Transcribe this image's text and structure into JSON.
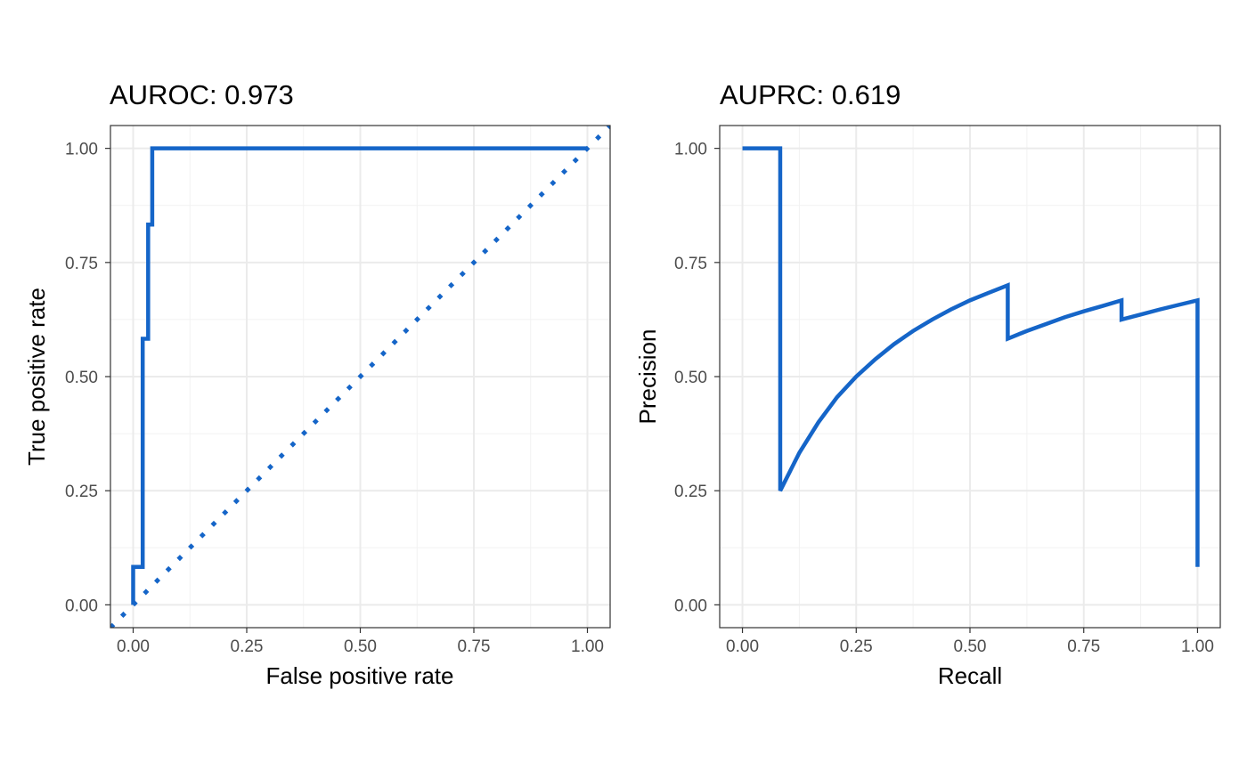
{
  "chart_data": [
    {
      "type": "line",
      "title": "AUROC: 0.973",
      "xlabel": "False positive rate",
      "ylabel": "True positive rate",
      "xlim": [
        -0.05,
        1.05
      ],
      "ylim": [
        -0.05,
        1.05
      ],
      "xticks": [
        "0.00",
        "0.25",
        "0.50",
        "0.75",
        "1.00"
      ],
      "yticks": [
        "0.00",
        "0.25",
        "0.50",
        "0.75",
        "1.00"
      ],
      "grid": true,
      "color": "#1565C8",
      "series": [
        {
          "style": "step",
          "points": [
            [
              0.0,
              0.0
            ],
            [
              0.0,
              0.083
            ],
            [
              0.021,
              0.083
            ],
            [
              0.021,
              0.583
            ],
            [
              0.033,
              0.583
            ],
            [
              0.033,
              0.833
            ],
            [
              0.042,
              0.833
            ],
            [
              0.042,
              1.0
            ],
            [
              1.0,
              1.0
            ]
          ]
        },
        {
          "style": "dotted",
          "points": [
            [
              -0.05,
              -0.05
            ],
            [
              1.05,
              1.05
            ]
          ]
        }
      ]
    },
    {
      "type": "line",
      "title": "AUPRC: 0.619",
      "xlabel": "Recall",
      "ylabel": "Precision",
      "xlim": [
        -0.05,
        1.05
      ],
      "ylim": [
        -0.05,
        1.05
      ],
      "xticks": [
        "0.00",
        "0.25",
        "0.50",
        "0.75",
        "1.00"
      ],
      "yticks": [
        "0.00",
        "0.25",
        "0.50",
        "0.75",
        "1.00"
      ],
      "grid": true,
      "color": "#1565C8",
      "series": [
        {
          "style": "solid",
          "points": [
            [
              0.0,
              1.0
            ],
            [
              0.083,
              1.0
            ],
            [
              0.083,
              0.25
            ],
            [
              0.125,
              0.333
            ],
            [
              0.167,
              0.4
            ],
            [
              0.208,
              0.455
            ],
            [
              0.25,
              0.5
            ],
            [
              0.292,
              0.538
            ],
            [
              0.333,
              0.571
            ],
            [
              0.375,
              0.6
            ],
            [
              0.417,
              0.625
            ],
            [
              0.458,
              0.647
            ],
            [
              0.5,
              0.667
            ],
            [
              0.542,
              0.684
            ],
            [
              0.583,
              0.7
            ],
            [
              0.583,
              0.583
            ],
            [
              0.625,
              0.6
            ],
            [
              0.667,
              0.615
            ],
            [
              0.708,
              0.63
            ],
            [
              0.75,
              0.643
            ],
            [
              0.792,
              0.655
            ],
            [
              0.833,
              0.667
            ],
            [
              0.833,
              0.625
            ],
            [
              0.875,
              0.636
            ],
            [
              0.917,
              0.647
            ],
            [
              0.958,
              0.657
            ],
            [
              1.0,
              0.667
            ],
            [
              1.0,
              0.083
            ]
          ]
        }
      ]
    }
  ]
}
